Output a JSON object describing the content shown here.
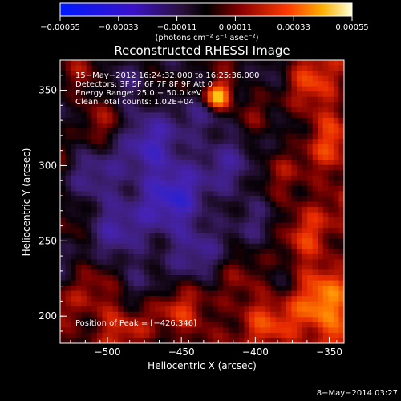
{
  "chart_data": {
    "type": "heatmap",
    "title": "Reconstructed RHESSI Image",
    "xlabel": "Heliocentric X (arcsec)",
    "ylabel": "Heliocentric Y (arcsec)",
    "xlim": [
      -532,
      -340
    ],
    "ylim": [
      182,
      370
    ],
    "xticks": [
      -500,
      -450,
      -400,
      -350
    ],
    "yticks": [
      200,
      250,
      300,
      350
    ],
    "xtick_labels": [
      "−500",
      "−450",
      "−400",
      "−350"
    ],
    "ytick_labels": [
      "200",
      "250",
      "300",
      "350"
    ],
    "colorbar": {
      "range": [
        -0.00055,
        0.00055
      ],
      "ticks": [
        -0.00055,
        -0.00033,
        -0.00011,
        0.00011,
        0.00033,
        0.00055
      ],
      "tick_labels": [
        "−0.00055",
        "−0.00033",
        "−0.00011",
        "0.00011",
        "0.00033",
        "0.00055"
      ],
      "unit_label": "(photons cm⁻² s⁻¹ asec⁻²)"
    },
    "annotations": [
      "15−May−2012 16:24:32.000 to 16:25:36.000",
      "Detectors: 3F 5F 6F 7F 8F 9F  Att 0",
      "Energy Range: 25.0 − 50.0 keV",
      "Clean    Total counts: 1.02E+04"
    ],
    "peak_label": "Position of Peak = [−426,346]",
    "peak": {
      "x": -426,
      "y": 346
    },
    "colors": {
      "background": "#000000",
      "text": "#ffffff"
    }
  },
  "footer": {
    "date": "8−May−2014 03:27"
  }
}
